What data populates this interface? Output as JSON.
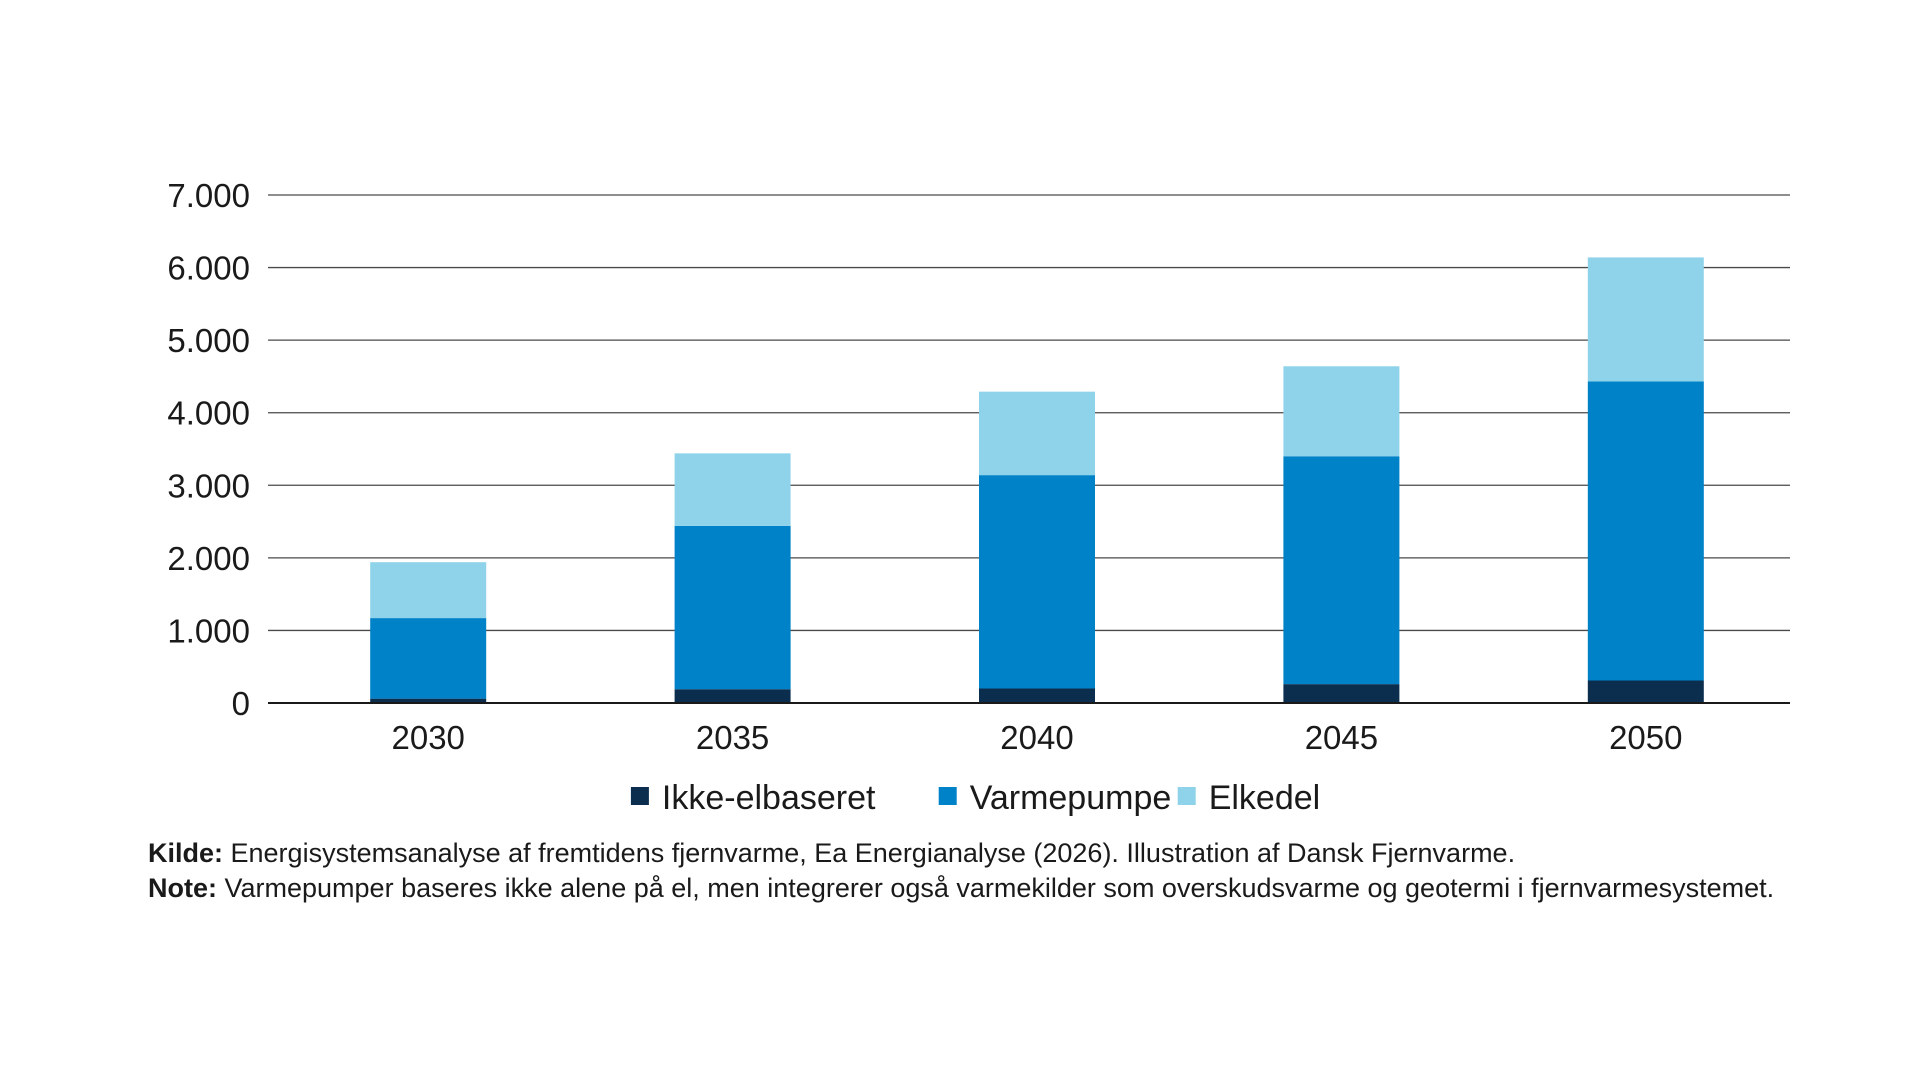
{
  "chart_data": {
    "type": "bar",
    "stacked": true,
    "categories": [
      "2030",
      "2035",
      "2040",
      "2045",
      "2050"
    ],
    "series": [
      {
        "name": "Ikke-elbaseret",
        "color": "#0b2e4f",
        "values": [
          60,
          190,
          200,
          260,
          310
        ]
      },
      {
        "name": "Varmepumpe",
        "color": "#0082c8",
        "values": [
          1110,
          2250,
          2940,
          3140,
          4120
        ]
      },
      {
        "name": "Elkedel",
        "color": "#8fd3ea",
        "values": [
          770,
          1000,
          1150,
          1240,
          1710
        ]
      }
    ],
    "ylim": [
      0,
      7000
    ],
    "yticks": [
      0,
      1000,
      2000,
      3000,
      4000,
      5000,
      6000,
      7000
    ],
    "ytick_labels": [
      "0",
      "1.000",
      "2.000",
      "3.000",
      "4.000",
      "5.000",
      "6.000",
      "7.000"
    ],
    "grid": true,
    "legend_position": "bottom-center"
  },
  "notes": {
    "source_label": "Kilde:",
    "source_text": " Energisystemsanalyse af fremtidens fjernvarme, Ea Energianalyse (2026). Illustration af Dansk Fjernvarme.",
    "note_label": "Note:",
    "note_text": " Varmepumper baseres ikke alene på el, men integrerer også varmekilder som overskudsvarme og geotermi i fjernvarmesystemet."
  }
}
